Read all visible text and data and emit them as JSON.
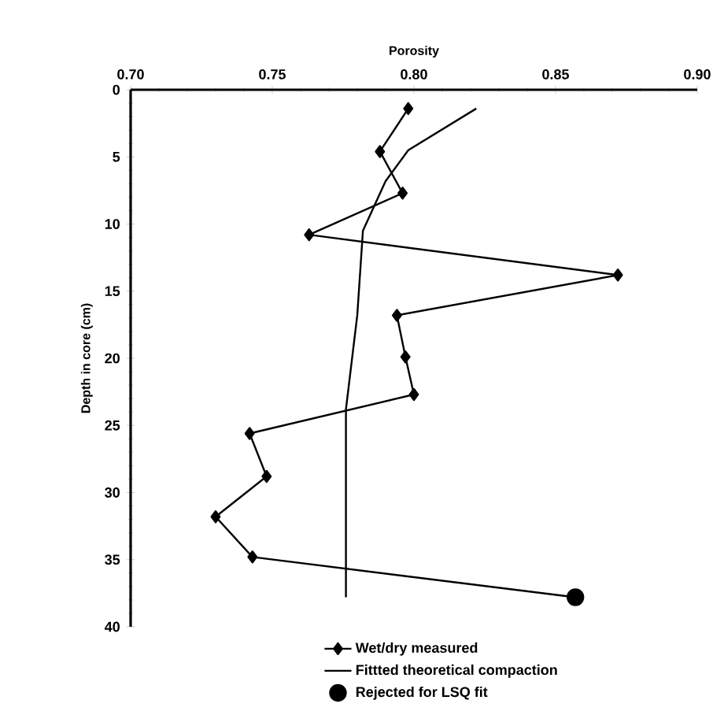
{
  "chart_data": {
    "type": "line",
    "xlabel": "Porosity",
    "ylabel": "Depth in core (cm)",
    "xlim": [
      0.7,
      0.9
    ],
    "ylim": [
      40,
      0
    ],
    "xticks": [
      {
        "value": 0.7,
        "label": "0.70"
      },
      0.75,
      {
        "value": 0.8,
        "label": "0.80"
      },
      0.85,
      {
        "value": 0.9,
        "label": "0.90"
      }
    ],
    "yticks": [
      0,
      5,
      10,
      15,
      20,
      25,
      30,
      35,
      40
    ],
    "legend": "bottom",
    "series": [
      {
        "name": "Wet/dry measured",
        "marker": "diamond",
        "color": "#000000",
        "x": [
          0.798,
          0.788,
          0.796,
          0.763,
          0.872,
          0.794,
          0.797,
          0.8,
          0.742,
          0.748,
          0.73,
          0.743,
          0.857
        ],
        "values": [
          1.4,
          4.6,
          7.7,
          10.8,
          13.8,
          16.8,
          19.9,
          22.7,
          25.6,
          28.8,
          31.8,
          34.8,
          37.8
        ]
      },
      {
        "name": "Fittted theoretical compaction",
        "marker": "none",
        "color": "#000000",
        "x": [
          0.822,
          0.798,
          0.79,
          0.782,
          0.78,
          0.776,
          0.776
        ],
        "values": [
          1.4,
          4.5,
          6.8,
          10.5,
          16.8,
          23.8,
          37.8
        ]
      },
      {
        "name": "Rejected for LSQ fit",
        "type": "scatter",
        "marker": "circle",
        "color": "#000000",
        "x": [
          0.857
        ],
        "values": [
          37.8
        ]
      }
    ]
  }
}
